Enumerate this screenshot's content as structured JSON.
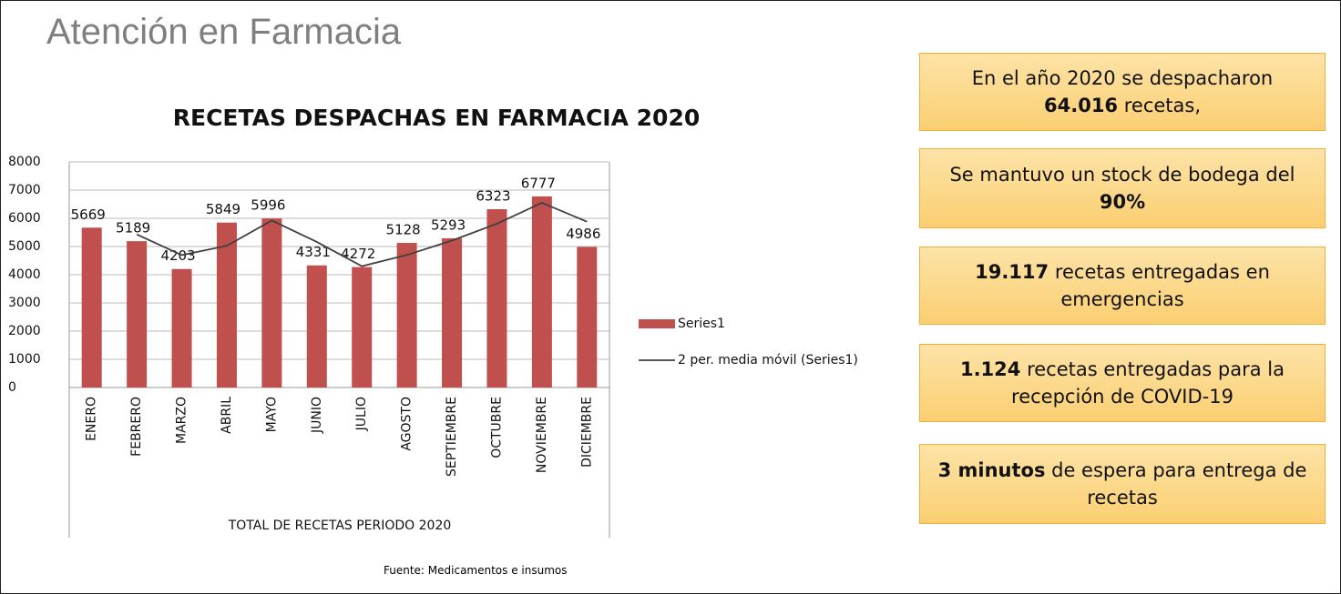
{
  "page_title": "Atención en Farmacia",
  "chart_data": {
    "type": "bar",
    "title": "RECETAS DESPACHAS EN  FARMACIA  2020",
    "x_label": "TOTAL  DE RECETAS PERIODO 2020",
    "categories": [
      "ENERO",
      "FEBRERO",
      "MARZO",
      "ABRIL",
      "MAYO",
      "JUNIO",
      "JULIO",
      "AGOSTO",
      "SEPTIEMBRE",
      "OCTUBRE",
      "NOVIEMBRE",
      "DICIEMBRE"
    ],
    "series": [
      {
        "name": "Series1",
        "type": "bar",
        "color": "#c0504d",
        "values": [
          5669,
          5189,
          4203,
          5849,
          5996,
          4331,
          4272,
          5128,
          5293,
          6323,
          6777,
          4986
        ]
      },
      {
        "name": "2 per. media móvil (Series1)",
        "type": "line",
        "color": "#404040",
        "values": [
          null,
          5429,
          4696,
          5026,
          5922.5,
          5163.5,
          4301.5,
          4700,
          5210.5,
          5808,
          6550,
          5881.5
        ]
      }
    ],
    "ylim": [
      0,
      8000
    ],
    "yticks": [
      0,
      1000,
      2000,
      3000,
      4000,
      5000,
      6000,
      7000,
      8000
    ],
    "grid": true,
    "legend": "right"
  },
  "source": "Fuente: Medicamentos e insumos",
  "boxes": [
    [
      {
        "text": "En el año 2020 se despacharon ",
        "bold": false
      },
      {
        "text": "64.016",
        "bold": true
      },
      {
        "text": " recetas,",
        "bold": false
      }
    ],
    [
      {
        "text": "Se mantuvo un stock de bodega del ",
        "bold": false
      },
      {
        "text": "90%",
        "bold": true
      }
    ],
    [
      {
        "text": "19.117",
        "bold": true
      },
      {
        "text": " recetas entregadas en emergencias",
        "bold": false
      }
    ],
    [
      {
        "text": "1.124",
        "bold": true
      },
      {
        "text": " recetas entregadas para la recepción de COVID-19",
        "bold": false
      }
    ],
    [
      {
        "text": "3 minutos",
        "bold": true
      },
      {
        "text": " de espera para entrega de recetas",
        "bold": false
      }
    ]
  ]
}
